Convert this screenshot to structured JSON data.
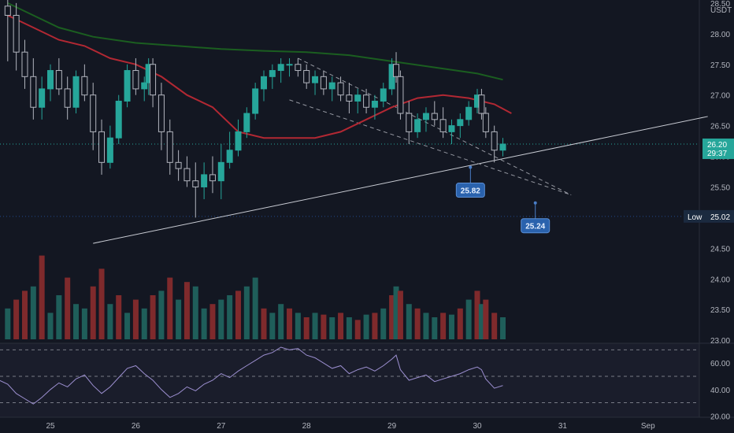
{
  "chart_data": {
    "type": "candlestick",
    "currency": "USDT",
    "price_axis": {
      "ticks": [
        "28.50",
        "28.00",
        "27.50",
        "27.00",
        "26.50",
        "26.00",
        "25.50",
        "25.00",
        "24.50",
        "24.00",
        "23.50",
        "23.00"
      ],
      "ylim": [
        22.95,
        28.55
      ]
    },
    "x_axis": {
      "labels": [
        "25",
        "26",
        "27",
        "28",
        "29",
        "30",
        "31",
        "Sep"
      ]
    },
    "current_price": {
      "value": "26.20",
      "subtext": "29:37",
      "color": "#26a69a"
    },
    "low_marker": {
      "label": "Low",
      "value": "25.02",
      "color": "#3179f5"
    },
    "callouts": [
      {
        "text": "25.82",
        "price": 25.82,
        "day": 29.92
      },
      {
        "text": "25.24",
        "price": 25.24,
        "day": 30.68
      }
    ],
    "colors": {
      "up": "#26a69a",
      "down": "#ef5350",
      "ma_fast": "#b22833",
      "ma_slow": "#1b5e20",
      "rsi": "#9c8fd0"
    },
    "candles": [
      [
        24.5,
        28.45,
        28.55,
        27.55,
        28.3
      ],
      [
        24.6,
        28.3,
        28.5,
        27.4,
        27.7
      ],
      [
        24.7,
        27.7,
        27.9,
        27.1,
        27.3
      ],
      [
        24.8,
        27.3,
        27.6,
        26.6,
        26.8
      ],
      [
        24.9,
        26.8,
        27.3,
        26.6,
        27.1
      ],
      [
        25.0,
        27.1,
        27.5,
        26.9,
        27.4
      ],
      [
        25.1,
        27.4,
        27.6,
        27.0,
        27.1
      ],
      [
        25.2,
        27.1,
        27.3,
        26.6,
        26.8
      ],
      [
        25.3,
        26.8,
        27.4,
        26.7,
        27.3
      ],
      [
        25.4,
        27.3,
        27.5,
        26.9,
        27.0
      ],
      [
        25.5,
        27.0,
        27.2,
        26.1,
        26.4
      ],
      [
        25.6,
        26.4,
        26.6,
        25.7,
        25.9
      ],
      [
        25.7,
        25.9,
        26.5,
        25.8,
        26.3
      ],
      [
        25.8,
        26.3,
        27.0,
        26.2,
        26.9
      ],
      [
        25.9,
        26.9,
        27.5,
        26.8,
        27.4
      ],
      [
        26.0,
        27.4,
        27.6,
        27.0,
        27.1
      ],
      [
        26.1,
        27.1,
        27.3,
        26.9,
        27.2
      ],
      [
        26.15,
        27.2,
        27.6,
        27.0,
        27.5
      ],
      [
        26.2,
        27.5,
        27.6,
        26.8,
        27.0
      ],
      [
        26.3,
        27.0,
        27.2,
        26.1,
        26.4
      ],
      [
        26.4,
        26.4,
        26.6,
        25.7,
        25.9
      ],
      [
        26.5,
        25.9,
        26.1,
        25.6,
        25.8
      ],
      [
        26.6,
        25.8,
        26.0,
        25.5,
        25.6
      ],
      [
        26.7,
        25.6,
        25.9,
        25.0,
        25.5
      ],
      [
        26.8,
        25.5,
        25.9,
        25.3,
        25.7
      ],
      [
        26.9,
        25.7,
        26.0,
        25.4,
        25.6
      ],
      [
        27.0,
        25.6,
        26.2,
        25.3,
        25.9
      ],
      [
        27.1,
        25.9,
        26.4,
        25.8,
        26.1
      ],
      [
        27.2,
        26.1,
        26.6,
        26.0,
        26.4
      ],
      [
        27.3,
        26.4,
        26.8,
        26.3,
        26.7
      ],
      [
        27.4,
        26.7,
        27.2,
        26.6,
        27.1
      ],
      [
        27.5,
        27.1,
        27.4,
        26.9,
        27.3
      ],
      [
        27.6,
        27.3,
        27.5,
        27.1,
        27.4
      ],
      [
        27.7,
        27.4,
        27.6,
        27.2,
        27.5
      ],
      [
        27.8,
        27.5,
        27.6,
        27.3,
        27.5
      ],
      [
        27.9,
        27.5,
        27.6,
        27.3,
        27.4
      ],
      [
        28.0,
        27.4,
        27.5,
        27.1,
        27.2
      ],
      [
        28.1,
        27.2,
        27.4,
        27.0,
        27.3
      ],
      [
        28.2,
        27.3,
        27.4,
        27.0,
        27.1
      ],
      [
        28.3,
        27.1,
        27.3,
        26.9,
        27.2
      ],
      [
        28.4,
        27.2,
        27.3,
        26.9,
        27.0
      ],
      [
        28.5,
        27.0,
        27.2,
        26.7,
        26.9
      ],
      [
        28.6,
        26.9,
        27.1,
        26.7,
        27.0
      ],
      [
        28.7,
        27.0,
        27.1,
        26.7,
        26.8
      ],
      [
        28.8,
        26.8,
        27.0,
        26.6,
        26.9
      ],
      [
        28.9,
        26.9,
        27.2,
        26.8,
        27.1
      ],
      [
        29.0,
        27.1,
        27.6,
        27.0,
        27.5
      ],
      [
        29.05,
        27.5,
        27.7,
        27.2,
        27.3
      ],
      [
        29.1,
        27.3,
        27.4,
        26.6,
        26.7
      ],
      [
        29.2,
        26.7,
        26.9,
        26.2,
        26.4
      ],
      [
        29.3,
        26.4,
        26.7,
        26.3,
        26.6
      ],
      [
        29.4,
        26.6,
        26.8,
        26.4,
        26.7
      ],
      [
        29.5,
        26.7,
        26.9,
        26.5,
        26.6
      ],
      [
        29.6,
        26.6,
        26.8,
        26.3,
        26.4
      ],
      [
        29.7,
        26.4,
        26.6,
        26.2,
        26.5
      ],
      [
        29.8,
        26.5,
        26.7,
        26.3,
        26.6
      ],
      [
        29.9,
        26.6,
        26.9,
        26.5,
        26.8
      ],
      [
        30.0,
        26.8,
        27.1,
        26.7,
        27.0
      ],
      [
        30.05,
        27.0,
        27.1,
        26.6,
        26.7
      ],
      [
        30.1,
        26.7,
        26.8,
        26.3,
        26.4
      ],
      [
        30.2,
        26.4,
        26.5,
        25.9,
        26.1
      ],
      [
        30.3,
        26.1,
        26.3,
        26.0,
        26.2
      ]
    ],
    "ma_fast": [
      [
        24.5,
        28.3
      ],
      [
        24.8,
        28.1
      ],
      [
        25.1,
        27.9
      ],
      [
        25.4,
        27.8
      ],
      [
        25.7,
        27.6
      ],
      [
        26.0,
        27.5
      ],
      [
        26.3,
        27.3
      ],
      [
        26.6,
        27.0
      ],
      [
        26.9,
        26.8
      ],
      [
        27.2,
        26.4
      ],
      [
        27.5,
        26.3
      ],
      [
        27.8,
        26.3
      ],
      [
        28.1,
        26.3
      ],
      [
        28.4,
        26.4
      ],
      [
        28.7,
        26.6
      ],
      [
        29.0,
        26.8
      ],
      [
        29.3,
        26.95
      ],
      [
        29.6,
        27.0
      ],
      [
        29.9,
        26.95
      ],
      [
        30.2,
        26.85
      ],
      [
        30.4,
        26.7
      ]
    ],
    "ma_slow": [
      [
        24.5,
        28.5
      ],
      [
        24.8,
        28.3
      ],
      [
        25.1,
        28.1
      ],
      [
        25.5,
        27.95
      ],
      [
        26.0,
        27.85
      ],
      [
        26.5,
        27.8
      ],
      [
        27.0,
        27.75
      ],
      [
        27.5,
        27.72
      ],
      [
        28.0,
        27.7
      ],
      [
        28.5,
        27.65
      ],
      [
        29.0,
        27.55
      ],
      [
        29.5,
        27.45
      ],
      [
        30.0,
        27.35
      ],
      [
        30.3,
        27.25
      ]
    ],
    "trendlines": [
      {
        "style": "solid",
        "from": [
          25.5,
          24.58
        ],
        "to": [
          32.7,
          26.65
        ]
      },
      {
        "style": "dashed",
        "from": [
          27.9,
          27.6
        ],
        "to": [
          31.1,
          25.37
        ]
      },
      {
        "style": "dashed",
        "from": [
          27.8,
          26.92
        ],
        "to": [
          31.1,
          25.37
        ]
      }
    ],
    "volume": [
      [
        24.5,
        "u",
        0.35
      ],
      [
        24.6,
        "d",
        0.45
      ],
      [
        24.7,
        "d",
        0.55
      ],
      [
        24.8,
        "u",
        0.6
      ],
      [
        24.9,
        "d",
        0.95
      ],
      [
        25.0,
        "u",
        0.3
      ],
      [
        25.1,
        "u",
        0.5
      ],
      [
        25.2,
        "d",
        0.7
      ],
      [
        25.3,
        "u",
        0.4
      ],
      [
        25.4,
        "u",
        0.35
      ],
      [
        25.5,
        "d",
        0.6
      ],
      [
        25.6,
        "d",
        0.8
      ],
      [
        25.7,
        "u",
        0.4
      ],
      [
        25.8,
        "d",
        0.5
      ],
      [
        25.9,
        "u",
        0.3
      ],
      [
        26.0,
        "d",
        0.45
      ],
      [
        26.1,
        "u",
        0.35
      ],
      [
        26.2,
        "d",
        0.5
      ],
      [
        26.3,
        "u",
        0.55
      ],
      [
        26.4,
        "d",
        0.7
      ],
      [
        26.5,
        "u",
        0.45
      ],
      [
        26.6,
        "d",
        0.65
      ],
      [
        26.7,
        "u",
        0.6
      ],
      [
        26.8,
        "u",
        0.35
      ],
      [
        26.9,
        "d",
        0.4
      ],
      [
        27.0,
        "u",
        0.45
      ],
      [
        27.1,
        "u",
        0.5
      ],
      [
        27.2,
        "d",
        0.55
      ],
      [
        27.3,
        "u",
        0.6
      ],
      [
        27.4,
        "u",
        0.7
      ],
      [
        27.5,
        "d",
        0.35
      ],
      [
        27.6,
        "u",
        0.3
      ],
      [
        27.7,
        "u",
        0.4
      ],
      [
        27.8,
        "d",
        0.35
      ],
      [
        27.9,
        "u",
        0.3
      ],
      [
        28.0,
        "d",
        0.25
      ],
      [
        28.1,
        "u",
        0.3
      ],
      [
        28.2,
        "d",
        0.28
      ],
      [
        28.3,
        "u",
        0.25
      ],
      [
        28.4,
        "d",
        0.3
      ],
      [
        28.5,
        "u",
        0.25
      ],
      [
        28.6,
        "d",
        0.22
      ],
      [
        28.7,
        "u",
        0.28
      ],
      [
        28.8,
        "d",
        0.3
      ],
      [
        28.9,
        "u",
        0.35
      ],
      [
        29.0,
        "d",
        0.5
      ],
      [
        29.05,
        "u",
        0.6
      ],
      [
        29.1,
        "d",
        0.55
      ],
      [
        29.2,
        "u",
        0.4
      ],
      [
        29.3,
        "d",
        0.35
      ],
      [
        29.4,
        "u",
        0.3
      ],
      [
        29.5,
        "u",
        0.25
      ],
      [
        29.6,
        "d",
        0.3
      ],
      [
        29.7,
        "u",
        0.28
      ],
      [
        29.8,
        "d",
        0.35
      ],
      [
        29.9,
        "u",
        0.45
      ],
      [
        30.0,
        "d",
        0.55
      ],
      [
        30.05,
        "u",
        0.4
      ],
      [
        30.1,
        "d",
        0.45
      ],
      [
        30.2,
        "d",
        0.3
      ],
      [
        30.3,
        "u",
        0.25
      ]
    ],
    "rsi": {
      "ticks": [
        "60.00",
        "40.00",
        "20.00"
      ],
      "ylim": [
        19,
        75
      ],
      "bands": [
        70,
        50,
        30
      ],
      "values": [
        [
          24.4,
          47
        ],
        [
          24.5,
          44
        ],
        [
          24.6,
          37
        ],
        [
          24.7,
          33
        ],
        [
          24.8,
          29
        ],
        [
          24.9,
          34
        ],
        [
          25.0,
          40
        ],
        [
          25.1,
          45
        ],
        [
          25.2,
          42
        ],
        [
          25.3,
          48
        ],
        [
          25.4,
          51
        ],
        [
          25.5,
          43
        ],
        [
          25.6,
          37
        ],
        [
          25.7,
          42
        ],
        [
          25.8,
          49
        ],
        [
          25.9,
          56
        ],
        [
          26.0,
          58
        ],
        [
          26.1,
          52
        ],
        [
          26.2,
          47
        ],
        [
          26.3,
          40
        ],
        [
          26.4,
          34
        ],
        [
          26.5,
          37
        ],
        [
          26.6,
          42
        ],
        [
          26.7,
          39
        ],
        [
          26.8,
          44
        ],
        [
          26.9,
          47
        ],
        [
          27.0,
          52
        ],
        [
          27.1,
          49
        ],
        [
          27.2,
          54
        ],
        [
          27.3,
          58
        ],
        [
          27.4,
          62
        ],
        [
          27.5,
          66
        ],
        [
          27.6,
          68
        ],
        [
          27.7,
          72
        ],
        [
          27.8,
          70
        ],
        [
          27.9,
          71
        ],
        [
          28.0,
          66
        ],
        [
          28.1,
          64
        ],
        [
          28.2,
          60
        ],
        [
          28.3,
          56
        ],
        [
          28.4,
          58
        ],
        [
          28.5,
          52
        ],
        [
          28.6,
          55
        ],
        [
          28.7,
          57
        ],
        [
          28.8,
          54
        ],
        [
          28.9,
          58
        ],
        [
          29.0,
          63
        ],
        [
          29.05,
          66
        ],
        [
          29.1,
          55
        ],
        [
          29.2,
          47
        ],
        [
          29.3,
          49
        ],
        [
          29.4,
          51
        ],
        [
          29.5,
          46
        ],
        [
          29.6,
          48
        ],
        [
          29.7,
          50
        ],
        [
          29.8,
          52
        ],
        [
          29.9,
          55
        ],
        [
          30.0,
          57
        ],
        [
          30.05,
          55
        ],
        [
          30.1,
          48
        ],
        [
          30.2,
          41
        ],
        [
          30.3,
          43
        ]
      ]
    }
  }
}
